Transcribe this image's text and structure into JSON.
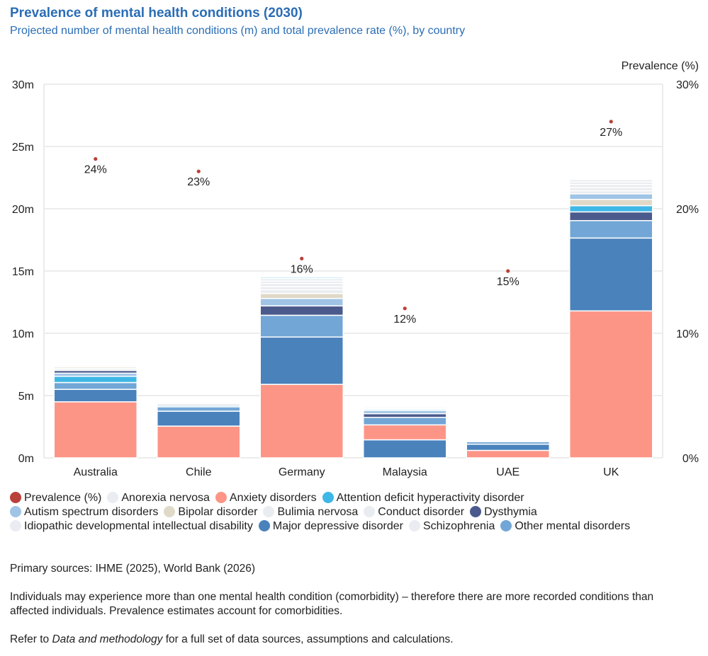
{
  "title": "Prevalence of mental health conditions (2030)",
  "subtitle": "Projected number of mental health conditions (m) and total prevalence rate (%), by country",
  "chart_data": {
    "type": "bar",
    "stacked": true,
    "categories": [
      "Australia",
      "Chile",
      "Germany",
      "Malaysia",
      "UAE",
      "UK"
    ],
    "y_left": {
      "ticks": [
        "0m",
        "5m",
        "10m",
        "15m",
        "20m",
        "25m",
        "30m"
      ],
      "ylim": [
        0,
        30
      ]
    },
    "y_right": {
      "label": "Prevalence (%)",
      "ticks": [
        "0%",
        "10%",
        "20%",
        "30%"
      ],
      "ylim": [
        0,
        30
      ]
    },
    "grid": true,
    "legend_position": "bottom",
    "series": [
      {
        "name": "Anorexia nervosa",
        "color": "#e9ecf0",
        "values": [
          0.08,
          0.03,
          0.25,
          0.05,
          0.02,
          0.25
        ]
      },
      {
        "name": "Anxiety disorders",
        "color": "#fd9587",
        "values": [
          4.5,
          2.55,
          5.9,
          1.2,
          0.6,
          11.8
        ]
      },
      {
        "name": "Attention deficit hyperactivity disorder",
        "color": "#3fb7e6",
        "values": [
          0.5,
          0.08,
          0.1,
          0.1,
          0.04,
          0.5
        ]
      },
      {
        "name": "Autism spectrum disorders",
        "color": "#9fc4e6",
        "values": [
          0.25,
          0.12,
          0.6,
          0.25,
          0.06,
          0.45
        ]
      },
      {
        "name": "Bipolar disorder",
        "color": "#e0d9c8",
        "values": [
          0.12,
          0.08,
          0.4,
          0.08,
          0.03,
          0.5
        ]
      },
      {
        "name": "Bulimia nervosa",
        "color": "#e9ecf0",
        "values": [
          0.1,
          0.04,
          0.25,
          0.06,
          0.02,
          0.25
        ]
      },
      {
        "name": "Conduct disorder",
        "color": "#e9ecf0",
        "values": [
          0.15,
          0.06,
          0.3,
          0.1,
          0.03,
          0.25
        ]
      },
      {
        "name": "Dysthymia",
        "color": "#4b5a8c",
        "values": [
          0.22,
          0.1,
          0.75,
          0.3,
          0.05,
          0.7
        ]
      },
      {
        "name": "Idiopathic developmental intellectual disability",
        "color": "#e9ecf0",
        "values": [
          0.08,
          0.1,
          0.2,
          0.1,
          0.03,
          0.2
        ]
      },
      {
        "name": "Major depressive disorder",
        "color": "#4a82bc",
        "values": [
          1.0,
          1.2,
          3.8,
          1.45,
          0.5,
          5.85
        ]
      },
      {
        "name": "Schizophrenia",
        "color": "#e9ecf0",
        "values": [
          0.05,
          0.04,
          0.2,
          0.08,
          0.02,
          0.2
        ]
      },
      {
        "name": "Other mental disorders",
        "color": "#72a6d6",
        "values": [
          0.55,
          0.35,
          1.75,
          0.6,
          0.2,
          1.4
        ]
      }
    ],
    "prevalence": {
      "name": "Prevalence (%)",
      "color": "#b9413a",
      "values": [
        24,
        23,
        16,
        12,
        15,
        27
      ],
      "labels": [
        "24%",
        "23%",
        "16%",
        "12%",
        "15%",
        "27%"
      ]
    }
  },
  "sources": "Primary sources: IHME (2025), World Bank (2026)",
  "note1": "Individuals may experience more than one mental health condition (comorbidity) – therefore there are more recorded conditions than affected individuals. Prevalence estimates account for comorbidities.",
  "note2_pre": "Refer to ",
  "note2_em": "Data and methodology",
  "note2_post": " for a full set of data sources, assumptions and calculations."
}
